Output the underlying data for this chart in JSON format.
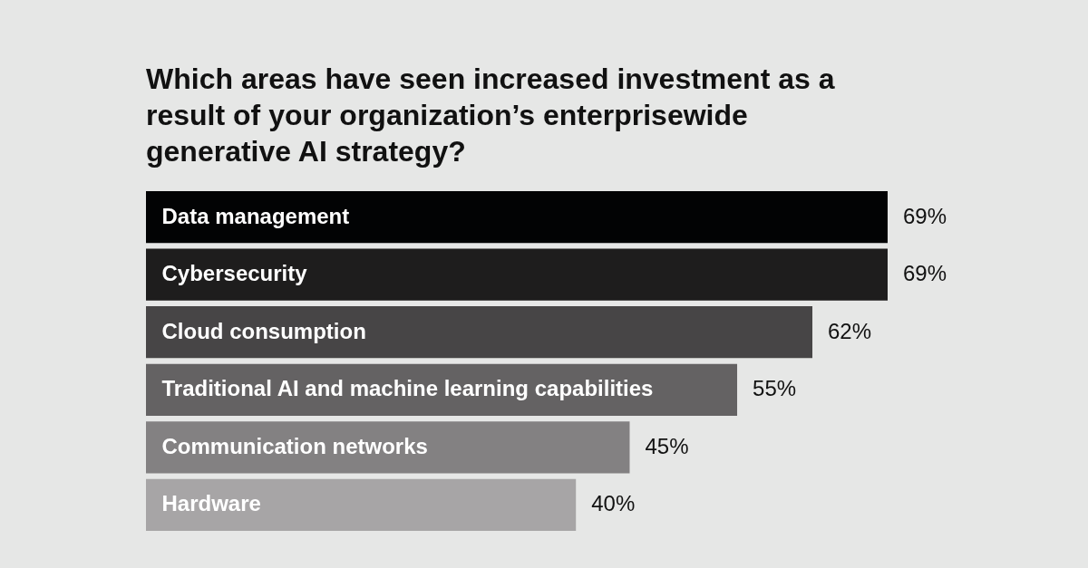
{
  "chart_data": {
    "type": "bar",
    "orientation": "horizontal",
    "title": "Which areas have seen increased investment as a result of your organization’s enterprisewide generative AI strategy?",
    "categories": [
      "Data management",
      "Cybersecurity",
      "Cloud consumption",
      "Traditional AI and machine learning capabilities",
      "Communication networks",
      "Hardware"
    ],
    "values": [
      69,
      69,
      62,
      55,
      45,
      40
    ],
    "colors": [
      "#020304",
      "#1e1d1d",
      "#474546",
      "#646263",
      "#838182",
      "#a7a5a6"
    ],
    "value_labels": [
      "69%",
      "69%",
      "62%",
      "55%",
      "45%",
      "40%"
    ],
    "tick_labels": "y"
  }
}
